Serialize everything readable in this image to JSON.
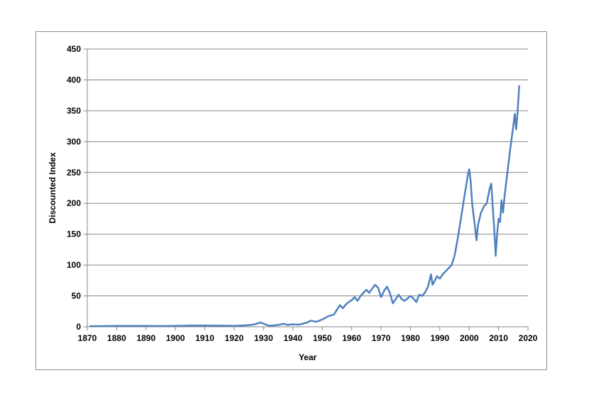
{
  "chart_data": {
    "type": "line",
    "title": "",
    "xlabel": "Year",
    "ylabel": "Discounted Index",
    "xlim": [
      1870,
      2020
    ],
    "ylim": [
      0,
      450
    ],
    "xticks": [
      1870,
      1880,
      1890,
      1900,
      1910,
      1920,
      1930,
      1940,
      1950,
      1960,
      1970,
      1980,
      1990,
      2000,
      2010,
      2020
    ],
    "yticks": [
      0,
      50,
      100,
      150,
      200,
      250,
      300,
      350,
      400,
      450
    ],
    "grid": "horizontal",
    "legend": "none",
    "line_color": "#4f81bd",
    "series": [
      {
        "x": [
          1871,
          1875,
          1880,
          1885,
          1890,
          1895,
          1900,
          1905,
          1910,
          1915,
          1920,
          1925,
          1927,
          1929,
          1930,
          1932,
          1935,
          1937,
          1938,
          1940,
          1942,
          1945,
          1946,
          1948,
          1950,
          1952,
          1954,
          1955,
          1956,
          1957,
          1958,
          1959,
          1960,
          1961,
          1962,
          1963,
          1964,
          1965,
          1966,
          1967,
          1968,
          1969,
          1970,
          1971,
          1972,
          1973,
          1974,
          1975,
          1976,
          1977,
          1978,
          1979,
          1980,
          1981,
          1982,
          1983,
          1984,
          1985,
          1986,
          1987,
          1987.5,
          1988,
          1989,
          1990,
          1991,
          1992,
          1993,
          1994,
          1995,
          1996,
          1997,
          1998,
          1999,
          1999.5,
          2000,
          2000.5,
          2001,
          2002,
          2002.5,
          2003,
          2004,
          2005,
          2006,
          2007,
          2007.5,
          2008,
          2008.5,
          2009,
          2009.5,
          2010,
          2010.5,
          2011,
          2011.5,
          2012,
          2013,
          2014,
          2015,
          2015.5,
          2016,
          2016.5,
          2017
        ],
        "y": [
          1,
          1,
          1.5,
          1.5,
          1.5,
          1.2,
          1.5,
          2,
          2,
          1.8,
          1.5,
          2.5,
          4,
          7,
          5,
          1.5,
          3,
          5,
          3,
          4,
          3.5,
          7,
          10,
          8,
          12,
          17,
          20,
          28,
          35,
          30,
          36,
          40,
          43,
          48,
          42,
          50,
          55,
          60,
          55,
          62,
          68,
          63,
          48,
          58,
          65,
          55,
          38,
          45,
          52,
          45,
          42,
          46,
          50,
          46,
          40,
          52,
          50,
          56,
          65,
          85,
          68,
          72,
          82,
          78,
          85,
          90,
          95,
          100,
          115,
          140,
          170,
          200,
          230,
          245,
          255,
          235,
          200,
          160,
          140,
          165,
          185,
          195,
          200,
          225,
          232,
          195,
          160,
          115,
          150,
          175,
          170,
          205,
          185,
          210,
          250,
          290,
          325,
          345,
          320,
          350,
          390
        ]
      }
    ]
  }
}
